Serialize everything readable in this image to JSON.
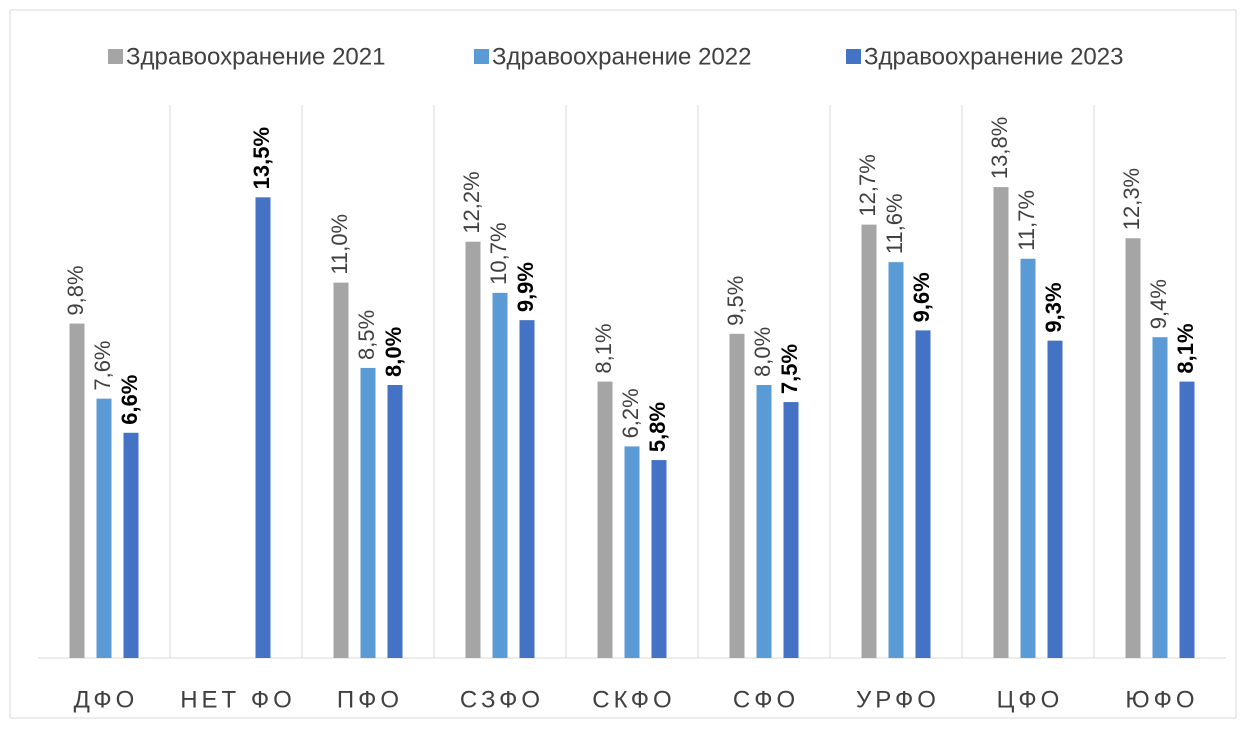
{
  "chart_data": {
    "type": "bar",
    "categories": [
      "ДФО",
      "НЕТ ФО",
      "ПФО",
      "СЗФО",
      "СКФО",
      "СФО",
      "УРФО",
      "ЦФО",
      "ЮФО"
    ],
    "series": [
      {
        "name": "Здравоохранение 2021",
        "color": "#a5a5a5",
        "values": [
          9.8,
          null,
          11.0,
          12.2,
          8.1,
          9.5,
          12.7,
          13.8,
          12.3
        ],
        "value_labels": [
          "9,8%",
          null,
          "11,0%",
          "12,2%",
          "8,1%",
          "9,5%",
          "12,7%",
          "13,8%",
          "12,3%"
        ]
      },
      {
        "name": "Здравоохранение 2022",
        "color": "#5b9bd5",
        "values": [
          7.6,
          null,
          8.5,
          10.7,
          6.2,
          8.0,
          11.6,
          11.7,
          9.4
        ],
        "value_labels": [
          "7,6%",
          null,
          "8,5%",
          "10,7%",
          "6,2%",
          "8,0%",
          "11,6%",
          "11,7%",
          "9,4%"
        ]
      },
      {
        "name": "Здравоохранение 2023",
        "color": "#4472c4",
        "values": [
          6.6,
          13.5,
          8.0,
          9.9,
          5.8,
          7.5,
          9.6,
          9.3,
          8.1
        ],
        "value_labels": [
          "6,6%",
          "13,5%",
          "8,0%",
          "9,9%",
          "5,8%",
          "7,5%",
          "9,6%",
          "9,3%",
          "8,1%"
        ]
      }
    ],
    "ylim": [
      0,
      16
    ],
    "legend": "top"
  }
}
